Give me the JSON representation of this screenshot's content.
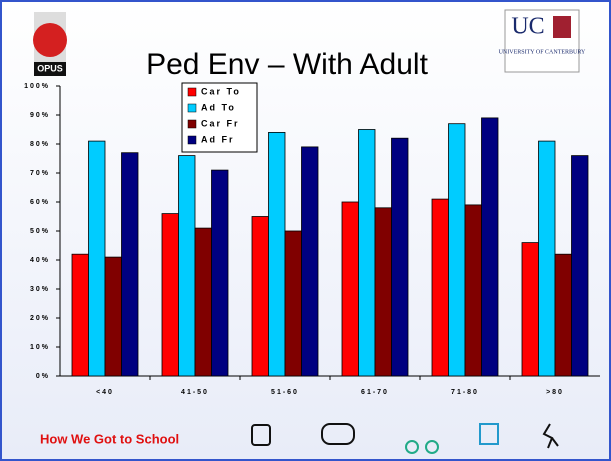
{
  "chart_data": {
    "type": "bar",
    "title": "Ped Env – With Adult",
    "categories": [
      "<40",
      "41-50",
      "51-60",
      "61-70",
      "71-80",
      ">80"
    ],
    "series": [
      {
        "name": "Car To",
        "color": "#ff0000",
        "values": [
          42,
          56,
          55,
          60,
          61,
          46
        ]
      },
      {
        "name": "Ad To",
        "color": "#00ccff",
        "values": [
          81,
          76,
          84,
          85,
          87,
          81
        ]
      },
      {
        "name": "Car Fr",
        "color": "#800000",
        "values": [
          41,
          51,
          50,
          58,
          59,
          42
        ]
      },
      {
        "name": "Ad Fr",
        "color": "#000080",
        "values": [
          77,
          71,
          79,
          82,
          89,
          76
        ]
      }
    ],
    "ylim": [
      0,
      100
    ],
    "yticks": [
      {
        "value": 0,
        "label": "0%"
      },
      {
        "value": 10,
        "label": "10%"
      },
      {
        "value": 20,
        "label": "20%"
      },
      {
        "value": 30,
        "label": "30%"
      },
      {
        "value": 40,
        "label": "40%"
      },
      {
        "value": 50,
        "label": "50%"
      },
      {
        "value": 60,
        "label": "60%"
      },
      {
        "value": 70,
        "label": "70%"
      },
      {
        "value": 80,
        "label": "80%"
      },
      {
        "value": 90,
        "label": "90%"
      },
      {
        "value": 100,
        "label": "100%"
      }
    ],
    "grid": false,
    "legend": "top-left"
  },
  "footer": "How We Got to School",
  "logos": {
    "left": "OPUS",
    "right": "UC",
    "right_sub": "UNIVERSITY OF CANTERBURY"
  }
}
